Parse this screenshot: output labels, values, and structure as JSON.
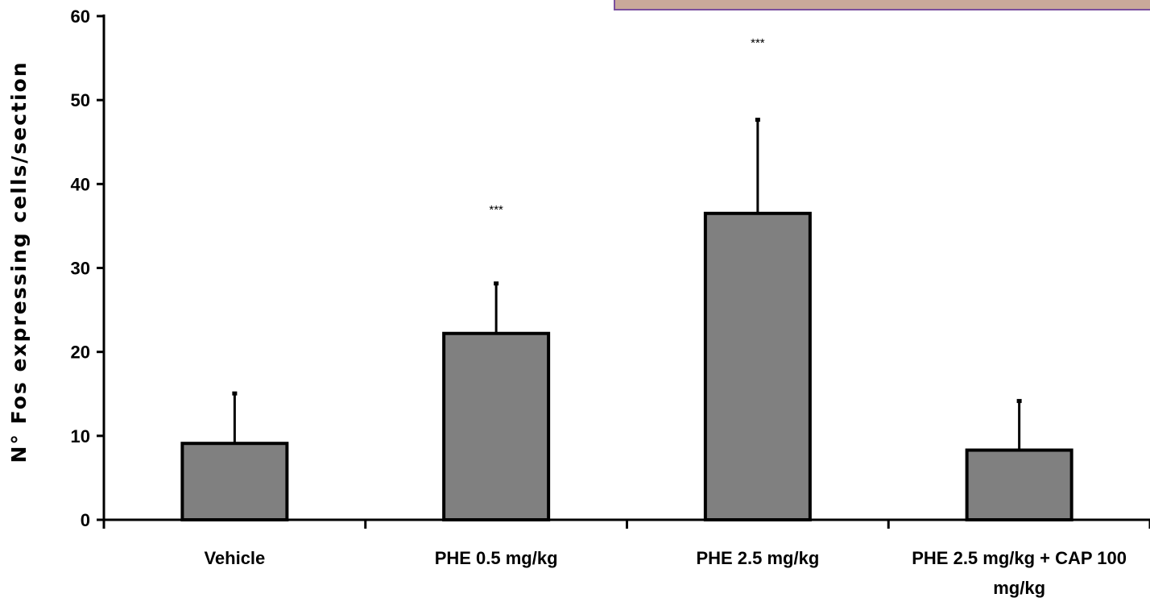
{
  "chart_data": {
    "type": "bar",
    "ylabel": "N° Fos expressing cells/section",
    "xlabel": "",
    "ylim": [
      0,
      60
    ],
    "yticks": [
      0,
      10,
      20,
      30,
      40,
      50,
      60
    ],
    "grid": false,
    "categories": [
      [
        "Vehicle"
      ],
      [
        "PHE 0.5 mg/kg"
      ],
      [
        "PHE 2.5 mg/kg"
      ],
      [
        "PHE 2.5 mg/kg + CAP 100",
        "mg/kg"
      ]
    ],
    "values": [
      9.1,
      22.2,
      36.5,
      8.3
    ],
    "error_upper": [
      6.0,
      6.0,
      11.2,
      5.9
    ],
    "annotations": [
      "",
      "***",
      "***",
      ""
    ],
    "bar_color": "#808080",
    "bar_edge_color": "#000000",
    "axis_color": "#000000"
  },
  "inset_image": {
    "frame_color": "#7a4f9e",
    "fill_color": "#c9a99a"
  }
}
